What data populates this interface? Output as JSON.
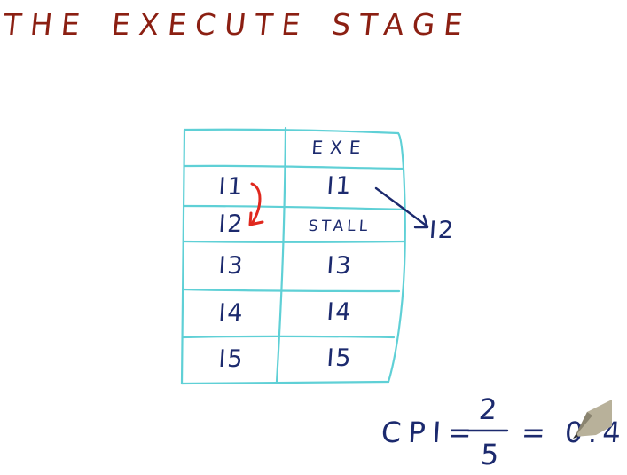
{
  "title": {
    "words": [
      "THE",
      "EXECUTE",
      "STAGE"
    ],
    "color": "#8b1f12"
  },
  "table": {
    "header": [
      "",
      "EXE"
    ],
    "rows": [
      [
        "I1",
        "I1"
      ],
      [
        "I2",
        "STALL"
      ],
      [
        "I3",
        "I3"
      ],
      [
        "I4",
        "I4"
      ],
      [
        "I5",
        "I5"
      ]
    ],
    "grid_color": "#5fd0d6"
  },
  "dependency_arrow": {
    "color": "#e0281e"
  },
  "overflow": {
    "label": "I2"
  },
  "formula": {
    "label": "CPI=",
    "numerator": "2",
    "denominator": "5",
    "result": "= 0.4"
  },
  "ink_color": "#1c2a6e"
}
